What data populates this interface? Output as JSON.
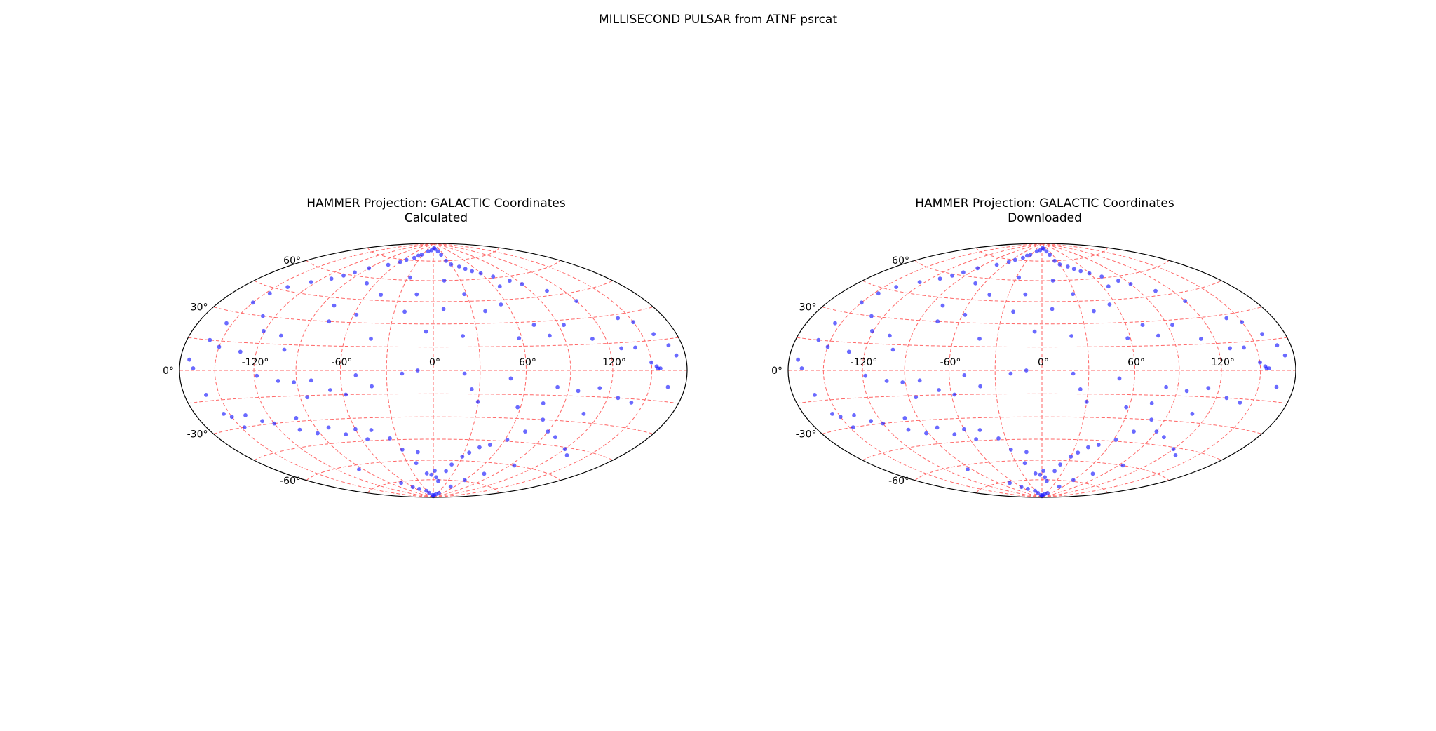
{
  "figure": {
    "suptitle": "MILLISECOND PULSAR from ATNF psrcat"
  },
  "chart_data": [
    {
      "type": "scatter",
      "projection": "hammer",
      "title": "HAMMER Projection: GALACTIC Coordinates",
      "subtitle": "Calculated",
      "x_ticks": [
        "-120°",
        "-60°",
        "0°",
        "60°",
        "120°"
      ],
      "y_ticks": [
        "-60°",
        "-30°",
        "0°",
        "30°",
        "60°"
      ],
      "xlim": [
        -180,
        180
      ],
      "ylim": [
        -90,
        90
      ],
      "grid": true,
      "grid_color": "#ff6666",
      "marker_color": "#1a1aff",
      "points": [
        [
          -172,
          5
        ],
        [
          -168,
          1
        ],
        [
          -160,
          15
        ],
        [
          -155,
          24
        ],
        [
          -150,
          36
        ],
        [
          -146,
          42
        ],
        [
          -139,
          47
        ],
        [
          -125,
          52
        ],
        [
          -111,
          56
        ],
        [
          -104,
          59
        ],
        [
          -98,
          62
        ],
        [
          -90,
          66
        ],
        [
          -72,
          70
        ],
        [
          -60,
          73
        ],
        [
          -54,
          75
        ],
        [
          -43,
          77
        ],
        [
          -39,
          79
        ],
        [
          -33,
          80
        ],
        [
          -20,
          83
        ],
        [
          -8,
          84
        ],
        [
          5,
          86
        ],
        [
          10,
          85
        ],
        [
          18,
          83
        ],
        [
          22,
          80
        ],
        [
          25,
          75
        ],
        [
          30,
          72
        ],
        [
          40,
          70
        ],
        [
          46,
          68
        ],
        [
          52,
          66
        ],
        [
          60,
          64
        ],
        [
          70,
          61
        ],
        [
          82,
          57
        ],
        [
          90,
          54
        ],
        [
          105,
          48
        ],
        [
          120,
          40
        ],
        [
          140,
          28
        ],
        [
          150,
          25
        ],
        [
          160,
          18
        ],
        [
          168,
          12
        ],
        [
          172,
          7
        ],
        [
          -130,
          30
        ],
        [
          -121,
          22
        ],
        [
          -106,
          20
        ],
        [
          -100,
          12
        ],
        [
          -80,
          40
        ],
        [
          -76,
          30
        ],
        [
          -69,
          56
        ],
        [
          -58,
          35
        ],
        [
          -47,
          49
        ],
        [
          -42,
          20
        ],
        [
          -27,
          62
        ],
        [
          -22,
          38
        ],
        [
          -15,
          50
        ],
        [
          -5,
          25
        ],
        [
          8,
          40
        ],
        [
          12,
          60
        ],
        [
          20,
          22
        ],
        [
          28,
          50
        ],
        [
          40,
          38
        ],
        [
          55,
          42
        ],
        [
          58,
          20
        ],
        [
          66,
          54
        ],
        [
          72,
          28
        ],
        [
          80,
          21
        ],
        [
          94,
          27
        ],
        [
          110,
          18
        ],
        [
          129,
          12
        ],
        [
          140,
          12
        ],
        [
          150,
          4
        ],
        [
          154,
          2
        ],
        [
          155,
          1
        ],
        [
          157,
          1
        ],
        [
          -150,
          12
        ],
        [
          -132,
          10
        ],
        [
          -118,
          -3
        ],
        [
          -103,
          -6
        ],
        [
          -92,
          -7
        ],
        [
          -85,
          -16
        ],
        [
          -80,
          -6
        ],
        [
          -68,
          -12
        ],
        [
          -58,
          -15
        ],
        [
          -50,
          -3
        ],
        [
          -40,
          -10
        ],
        [
          -20,
          -2
        ],
        [
          -10,
          0
        ],
        [
          20,
          -2
        ],
        [
          25,
          -12
        ],
        [
          30,
          -20
        ],
        [
          50,
          -5
        ],
        [
          58,
          -23
        ],
        [
          75,
          -20
        ],
        [
          82,
          -10
        ],
        [
          97,
          -12
        ],
        [
          108,
          -25
        ],
        [
          112,
          -10
        ],
        [
          128,
          -15
        ],
        [
          140,
          -17
        ],
        [
          165,
          -8
        ],
        [
          -161,
          -12
        ],
        [
          -155,
          -22
        ],
        [
          -150,
          -24
        ],
        [
          -147,
          -30
        ],
        [
          -138,
          -24
        ],
        [
          -128,
          -28
        ],
        [
          -120,
          -30
        ],
        [
          -104,
          -35
        ],
        [
          -100,
          -28
        ],
        [
          -92,
          -38
        ],
        [
          -80,
          -35
        ],
        [
          -70,
          -40
        ],
        [
          -60,
          -37
        ],
        [
          -55,
          -44
        ],
        [
          -48,
          -38
        ],
        [
          -36,
          -44
        ],
        [
          -29,
          -52
        ],
        [
          -20,
          -62
        ],
        [
          -15,
          -54
        ],
        [
          -10,
          -70
        ],
        [
          -3,
          -71
        ],
        [
          2,
          -68
        ],
        [
          5,
          -73
        ],
        [
          10,
          -76
        ],
        [
          18,
          -68
        ],
        [
          22,
          -63
        ],
        [
          30,
          -57
        ],
        [
          35,
          -54
        ],
        [
          42,
          -50
        ],
        [
          50,
          -48
        ],
        [
          62,
          -44
        ],
        [
          72,
          -38
        ],
        [
          80,
          -30
        ],
        [
          90,
          -37
        ],
        [
          100,
          -40
        ],
        [
          120,
          -46
        ],
        [
          130,
          -49
        ],
        [
          -95,
          -63
        ],
        [
          -70,
          -76
        ],
        [
          -60,
          -80
        ],
        [
          -50,
          -82
        ],
        [
          -32,
          -84
        ],
        [
          -28,
          -86
        ],
        [
          -12,
          -88
        ],
        [
          0,
          -89
        ],
        [
          10,
          -88
        ],
        [
          25,
          -87
        ],
        [
          38,
          -86
        ],
        [
          50,
          -80
        ],
        [
          60,
          -74
        ],
        [
          75,
          -68
        ],
        [
          95,
          -60
        ]
      ]
    },
    {
      "type": "scatter",
      "projection": "hammer",
      "title": "HAMMER Projection: GALACTIC Coordinates",
      "subtitle": "Downloaded",
      "x_ticks": [
        "-120°",
        "-60°",
        "0°",
        "60°",
        "120°"
      ],
      "y_ticks": [
        "-60°",
        "-30°",
        "0°",
        "30°",
        "60°"
      ],
      "xlim": [
        -180,
        180
      ],
      "ylim": [
        -90,
        90
      ],
      "grid": true,
      "grid_color": "#ff6666",
      "marker_color": "#1a1aff",
      "points": [
        [
          -172,
          5
        ],
        [
          -168,
          1
        ],
        [
          -160,
          15
        ],
        [
          -155,
          24
        ],
        [
          -150,
          36
        ],
        [
          -146,
          42
        ],
        [
          -139,
          47
        ],
        [
          -125,
          52
        ],
        [
          -111,
          56
        ],
        [
          -104,
          59
        ],
        [
          -98,
          62
        ],
        [
          -90,
          66
        ],
        [
          -72,
          70
        ],
        [
          -60,
          73
        ],
        [
          -54,
          75
        ],
        [
          -43,
          77
        ],
        [
          -39,
          79
        ],
        [
          -33,
          80
        ],
        [
          -20,
          83
        ],
        [
          -8,
          84
        ],
        [
          5,
          86
        ],
        [
          10,
          85
        ],
        [
          18,
          83
        ],
        [
          22,
          80
        ],
        [
          25,
          75
        ],
        [
          30,
          72
        ],
        [
          40,
          70
        ],
        [
          46,
          68
        ],
        [
          52,
          66
        ],
        [
          60,
          64
        ],
        [
          70,
          61
        ],
        [
          82,
          57
        ],
        [
          90,
          54
        ],
        [
          105,
          48
        ],
        [
          120,
          40
        ],
        [
          140,
          28
        ],
        [
          150,
          25
        ],
        [
          160,
          18
        ],
        [
          168,
          12
        ],
        [
          172,
          7
        ],
        [
          -130,
          30
        ],
        [
          -121,
          22
        ],
        [
          -106,
          20
        ],
        [
          -100,
          12
        ],
        [
          -80,
          40
        ],
        [
          -76,
          30
        ],
        [
          -69,
          56
        ],
        [
          -58,
          35
        ],
        [
          -47,
          49
        ],
        [
          -42,
          20
        ],
        [
          -27,
          62
        ],
        [
          -22,
          38
        ],
        [
          -15,
          50
        ],
        [
          -5,
          25
        ],
        [
          8,
          40
        ],
        [
          12,
          60
        ],
        [
          20,
          22
        ],
        [
          28,
          50
        ],
        [
          40,
          38
        ],
        [
          55,
          42
        ],
        [
          58,
          20
        ],
        [
          66,
          54
        ],
        [
          72,
          28
        ],
        [
          80,
          21
        ],
        [
          94,
          27
        ],
        [
          110,
          18
        ],
        [
          129,
          12
        ],
        [
          140,
          12
        ],
        [
          150,
          4
        ],
        [
          154,
          2
        ],
        [
          155,
          1
        ],
        [
          157,
          1
        ],
        [
          -150,
          12
        ],
        [
          -132,
          10
        ],
        [
          -118,
          -3
        ],
        [
          -103,
          -6
        ],
        [
          -92,
          -7
        ],
        [
          -85,
          -16
        ],
        [
          -80,
          -6
        ],
        [
          -68,
          -12
        ],
        [
          -58,
          -15
        ],
        [
          -50,
          -3
        ],
        [
          -40,
          -10
        ],
        [
          -20,
          -2
        ],
        [
          -10,
          0
        ],
        [
          20,
          -2
        ],
        [
          25,
          -12
        ],
        [
          30,
          -20
        ],
        [
          50,
          -5
        ],
        [
          58,
          -23
        ],
        [
          75,
          -20
        ],
        [
          82,
          -10
        ],
        [
          97,
          -12
        ],
        [
          108,
          -25
        ],
        [
          112,
          -10
        ],
        [
          128,
          -15
        ],
        [
          140,
          -17
        ],
        [
          165,
          -8
        ],
        [
          -161,
          -12
        ],
        [
          -155,
          -22
        ],
        [
          -150,
          -24
        ],
        [
          -147,
          -30
        ],
        [
          -138,
          -24
        ],
        [
          -128,
          -28
        ],
        [
          -120,
          -30
        ],
        [
          -104,
          -35
        ],
        [
          -100,
          -28
        ],
        [
          -92,
          -38
        ],
        [
          -80,
          -35
        ],
        [
          -70,
          -40
        ],
        [
          -60,
          -37
        ],
        [
          -55,
          -44
        ],
        [
          -48,
          -38
        ],
        [
          -36,
          -44
        ],
        [
          -29,
          -52
        ],
        [
          -20,
          -62
        ],
        [
          -15,
          -54
        ],
        [
          -10,
          -70
        ],
        [
          -3,
          -71
        ],
        [
          2,
          -68
        ],
        [
          5,
          -73
        ],
        [
          10,
          -76
        ],
        [
          18,
          -68
        ],
        [
          22,
          -63
        ],
        [
          30,
          -57
        ],
        [
          35,
          -54
        ],
        [
          42,
          -50
        ],
        [
          50,
          -48
        ],
        [
          62,
          -44
        ],
        [
          72,
          -38
        ],
        [
          80,
          -30
        ],
        [
          90,
          -37
        ],
        [
          100,
          -40
        ],
        [
          120,
          -46
        ],
        [
          130,
          -49
        ],
        [
          -95,
          -63
        ],
        [
          -70,
          -76
        ],
        [
          -60,
          -80
        ],
        [
          -50,
          -82
        ],
        [
          -32,
          -84
        ],
        [
          -28,
          -86
        ],
        [
          -12,
          -88
        ],
        [
          0,
          -89
        ],
        [
          10,
          -88
        ],
        [
          25,
          -87
        ],
        [
          38,
          -86
        ],
        [
          50,
          -80
        ],
        [
          60,
          -74
        ],
        [
          75,
          -68
        ],
        [
          95,
          -60
        ]
      ]
    }
  ]
}
